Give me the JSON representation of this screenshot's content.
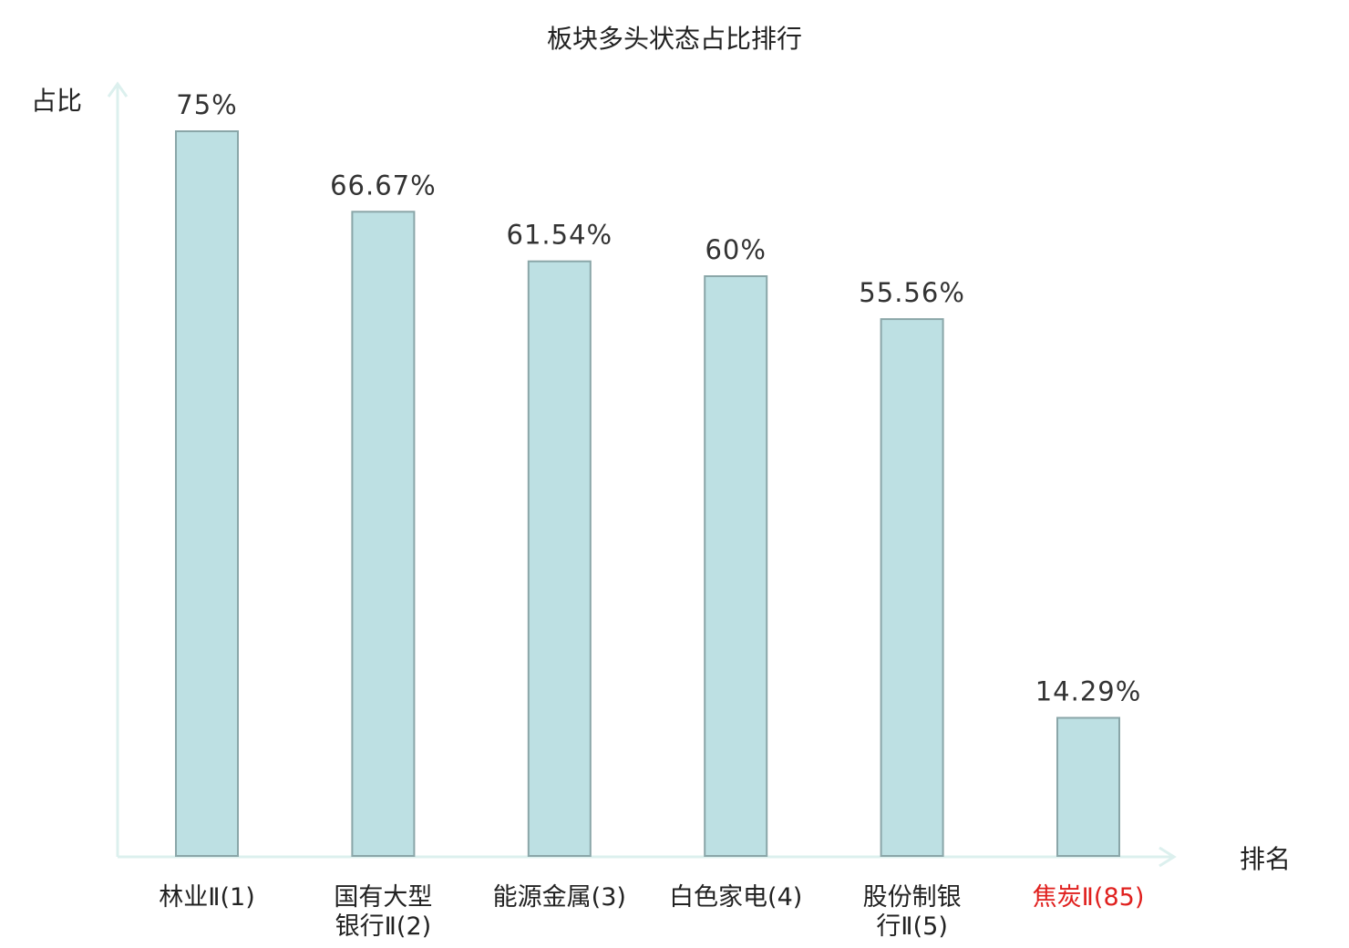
{
  "chart_data": {
    "type": "bar",
    "title": "板块多头状态占比排行",
    "ylabel": "占比",
    "xlabel": "排名",
    "ylim": [
      0,
      80
    ],
    "categories": [
      [
        "林业Ⅱ(1)"
      ],
      [
        "国有大型",
        "银行Ⅱ(2)"
      ],
      [
        "能源金属(3)"
      ],
      [
        "白色家电(4)"
      ],
      [
        "股份制银",
        "行Ⅱ(5)"
      ],
      [
        "焦炭Ⅱ(85)"
      ]
    ],
    "values": [
      75,
      66.67,
      61.54,
      60,
      55.56,
      14.29
    ],
    "value_labels": [
      "75%",
      "66.67%",
      "61.54%",
      "60%",
      "55.56%",
      "14.29%"
    ],
    "highlight_index": 5,
    "colors": {
      "bar_fill": "#bde0e3",
      "bar_stroke": "#8aa6a8",
      "axis": "#dcf0ee",
      "highlight_text": "#e0201e"
    },
    "grid": false
  }
}
